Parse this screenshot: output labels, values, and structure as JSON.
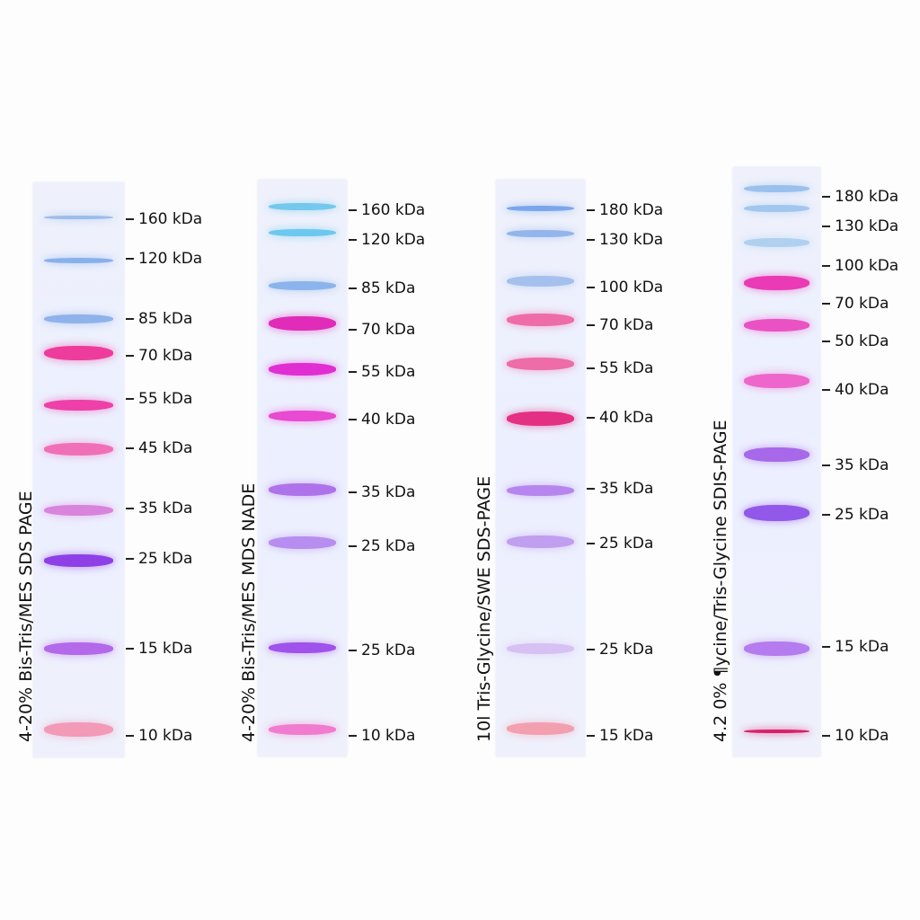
{
  "lanes": [
    {
      "title": "4-20% Bis-Tris/MES  SDS PAGE",
      "bands": [
        {
          "color": "#9cbcea"
        },
        {
          "color": "#88b0ea"
        },
        {
          "color": "#8fb2ea"
        },
        {
          "color": "#ee3c9c"
        },
        {
          "color": "#ee40a8"
        },
        {
          "color": "#f070b8"
        },
        {
          "color": "#d884dc"
        },
        {
          "color": "#8e40e6"
        },
        {
          "color": "#b468ea"
        },
        {
          "color": "#f29ab8"
        }
      ],
      "markers": [
        "160 kDa",
        "120 kDa",
        "85 kDa",
        "70 kDa",
        "55 kDa",
        "45 kDa",
        "35 kDa",
        "25 kDa",
        "15 kDa",
        "10 kDa"
      ]
    },
    {
      "title": "4-20% Bis-Tris/MES MDS NADE",
      "bands": [
        {
          "color": "#74c8ee"
        },
        {
          "color": "#6cc8ee"
        },
        {
          "color": "#8cb4ec"
        },
        {
          "color": "#e02cb8"
        },
        {
          "color": "#e02ed2"
        },
        {
          "color": "#e84ad2"
        },
        {
          "color": "#ae72ea"
        },
        {
          "color": "#b78ef0"
        },
        {
          "color": "#a052ec"
        },
        {
          "color": "#f07cd0"
        }
      ],
      "markers": [
        "160 kDa",
        "120 kDa",
        "85 kDa",
        "70 kDa",
        "55 kDa",
        "40 kDa",
        "35 kDa",
        "25 kDa",
        "25 kDa",
        "10 kDa"
      ]
    },
    {
      "title": "10l Tris-Glycine/SWE  SDS-PAGE",
      "bands": [
        {
          "color": "#7aa6ec"
        },
        {
          "color": "#94b4ec"
        },
        {
          "color": "#a6c0ee"
        },
        {
          "color": "#ee6ca8"
        },
        {
          "color": "#ee6ca8"
        },
        {
          "color": "#e43082"
        },
        {
          "color": "#b686ee"
        },
        {
          "color": "#c09ef0"
        },
        {
          "color": "#d6c0f4"
        },
        {
          "color": "#f2a0b0"
        }
      ],
      "markers": [
        "180 kDa",
        "130 kDa",
        "100 kDa",
        "70 kDa",
        "55 kDa",
        "40 kDa",
        "35 kDa",
        "25 kDa",
        "25 kDa",
        "15 kDa"
      ]
    },
    {
      "title": "4.2 0%  ¶ycine/Tris-Glycine  SDIS-PAGE",
      "bands": [
        {
          "color": "#9ac0ee"
        },
        {
          "color": "#a2c6ee"
        },
        {
          "color": "#b0d0f0"
        },
        {
          "color": "#ea3ab6"
        },
        {
          "color": "#ea52c4"
        },
        {
          "color": "#ee66cc"
        },
        {
          "color": "#a868ea"
        },
        {
          "color": "#9258ea"
        },
        {
          "color": "#b47cee"
        },
        {
          "color": "#d8206a"
        }
      ],
      "markers": [
        "180 kDa",
        "130 kDa",
        "100 kDa",
        "70 kDa",
        "50 kDa",
        "40 kDa",
        "35 kDa",
        "25 kDa",
        "15 kDa",
        "10 kDa"
      ]
    }
  ]
}
